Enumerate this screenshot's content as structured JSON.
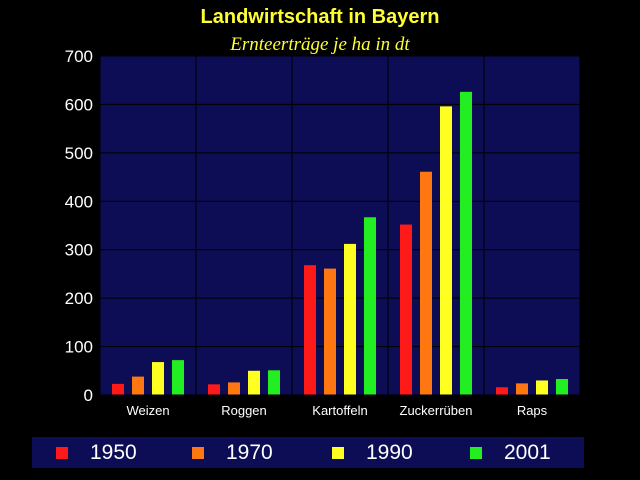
{
  "title": "Landwirtschaft in Bayern",
  "subtitle": "Ernteerträge je ha in dt",
  "colors": {
    "background": "#000000",
    "plot_background": "#0d0d55",
    "title": "#ffff33",
    "series": [
      "#ff1a1a",
      "#ff7711",
      "#ffff22",
      "#22ee22"
    ]
  },
  "chart_data": {
    "type": "bar",
    "title": "Landwirtschaft in Bayern",
    "subtitle": "Ernteerträge je ha in dt",
    "categories": [
      "Weizen",
      "Roggen",
      "Kartoffeln",
      "Zuckerrüben",
      "Raps"
    ],
    "series": [
      {
        "name": "1950",
        "values": [
          23,
          22,
          268,
          352,
          16
        ]
      },
      {
        "name": "1970",
        "values": [
          38,
          26,
          261,
          461,
          24
        ]
      },
      {
        "name": "1990",
        "values": [
          68,
          50,
          312,
          596,
          30
        ]
      },
      {
        "name": "2001",
        "values": [
          72,
          51,
          367,
          626,
          33
        ]
      }
    ],
    "ylim": [
      0,
      700
    ],
    "yticks": [
      0,
      100,
      200,
      300,
      400,
      500,
      600,
      700
    ],
    "grid": true,
    "legend_position": "bottom"
  }
}
